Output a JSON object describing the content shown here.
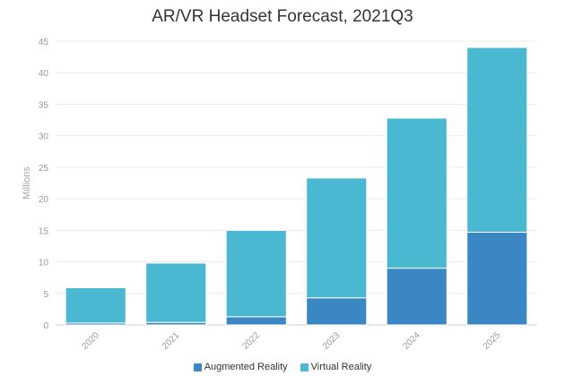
{
  "chart_data": {
    "type": "bar",
    "stacked": true,
    "title": "AR/VR Headset Forecast, 2021Q3",
    "ylabel": "Millions",
    "xlabel": "",
    "ylim": [
      0,
      45
    ],
    "yticks": [
      0,
      5,
      10,
      15,
      20,
      25,
      30,
      35,
      40,
      45
    ],
    "categories": [
      "2020",
      "2021",
      "2022",
      "2023",
      "2024",
      "2025"
    ],
    "series": [
      {
        "name": "Augmented Reality",
        "color": "#3a87c4",
        "values": [
          0.3,
          0.4,
          1.3,
          4.3,
          9.0,
          14.7
        ]
      },
      {
        "name": "Virtual Reality",
        "color": "#4ab8d0",
        "values": [
          5.6,
          9.4,
          13.7,
          19.0,
          23.8,
          29.3
        ]
      }
    ],
    "grid": true,
    "legend_position": "bottom-center"
  }
}
